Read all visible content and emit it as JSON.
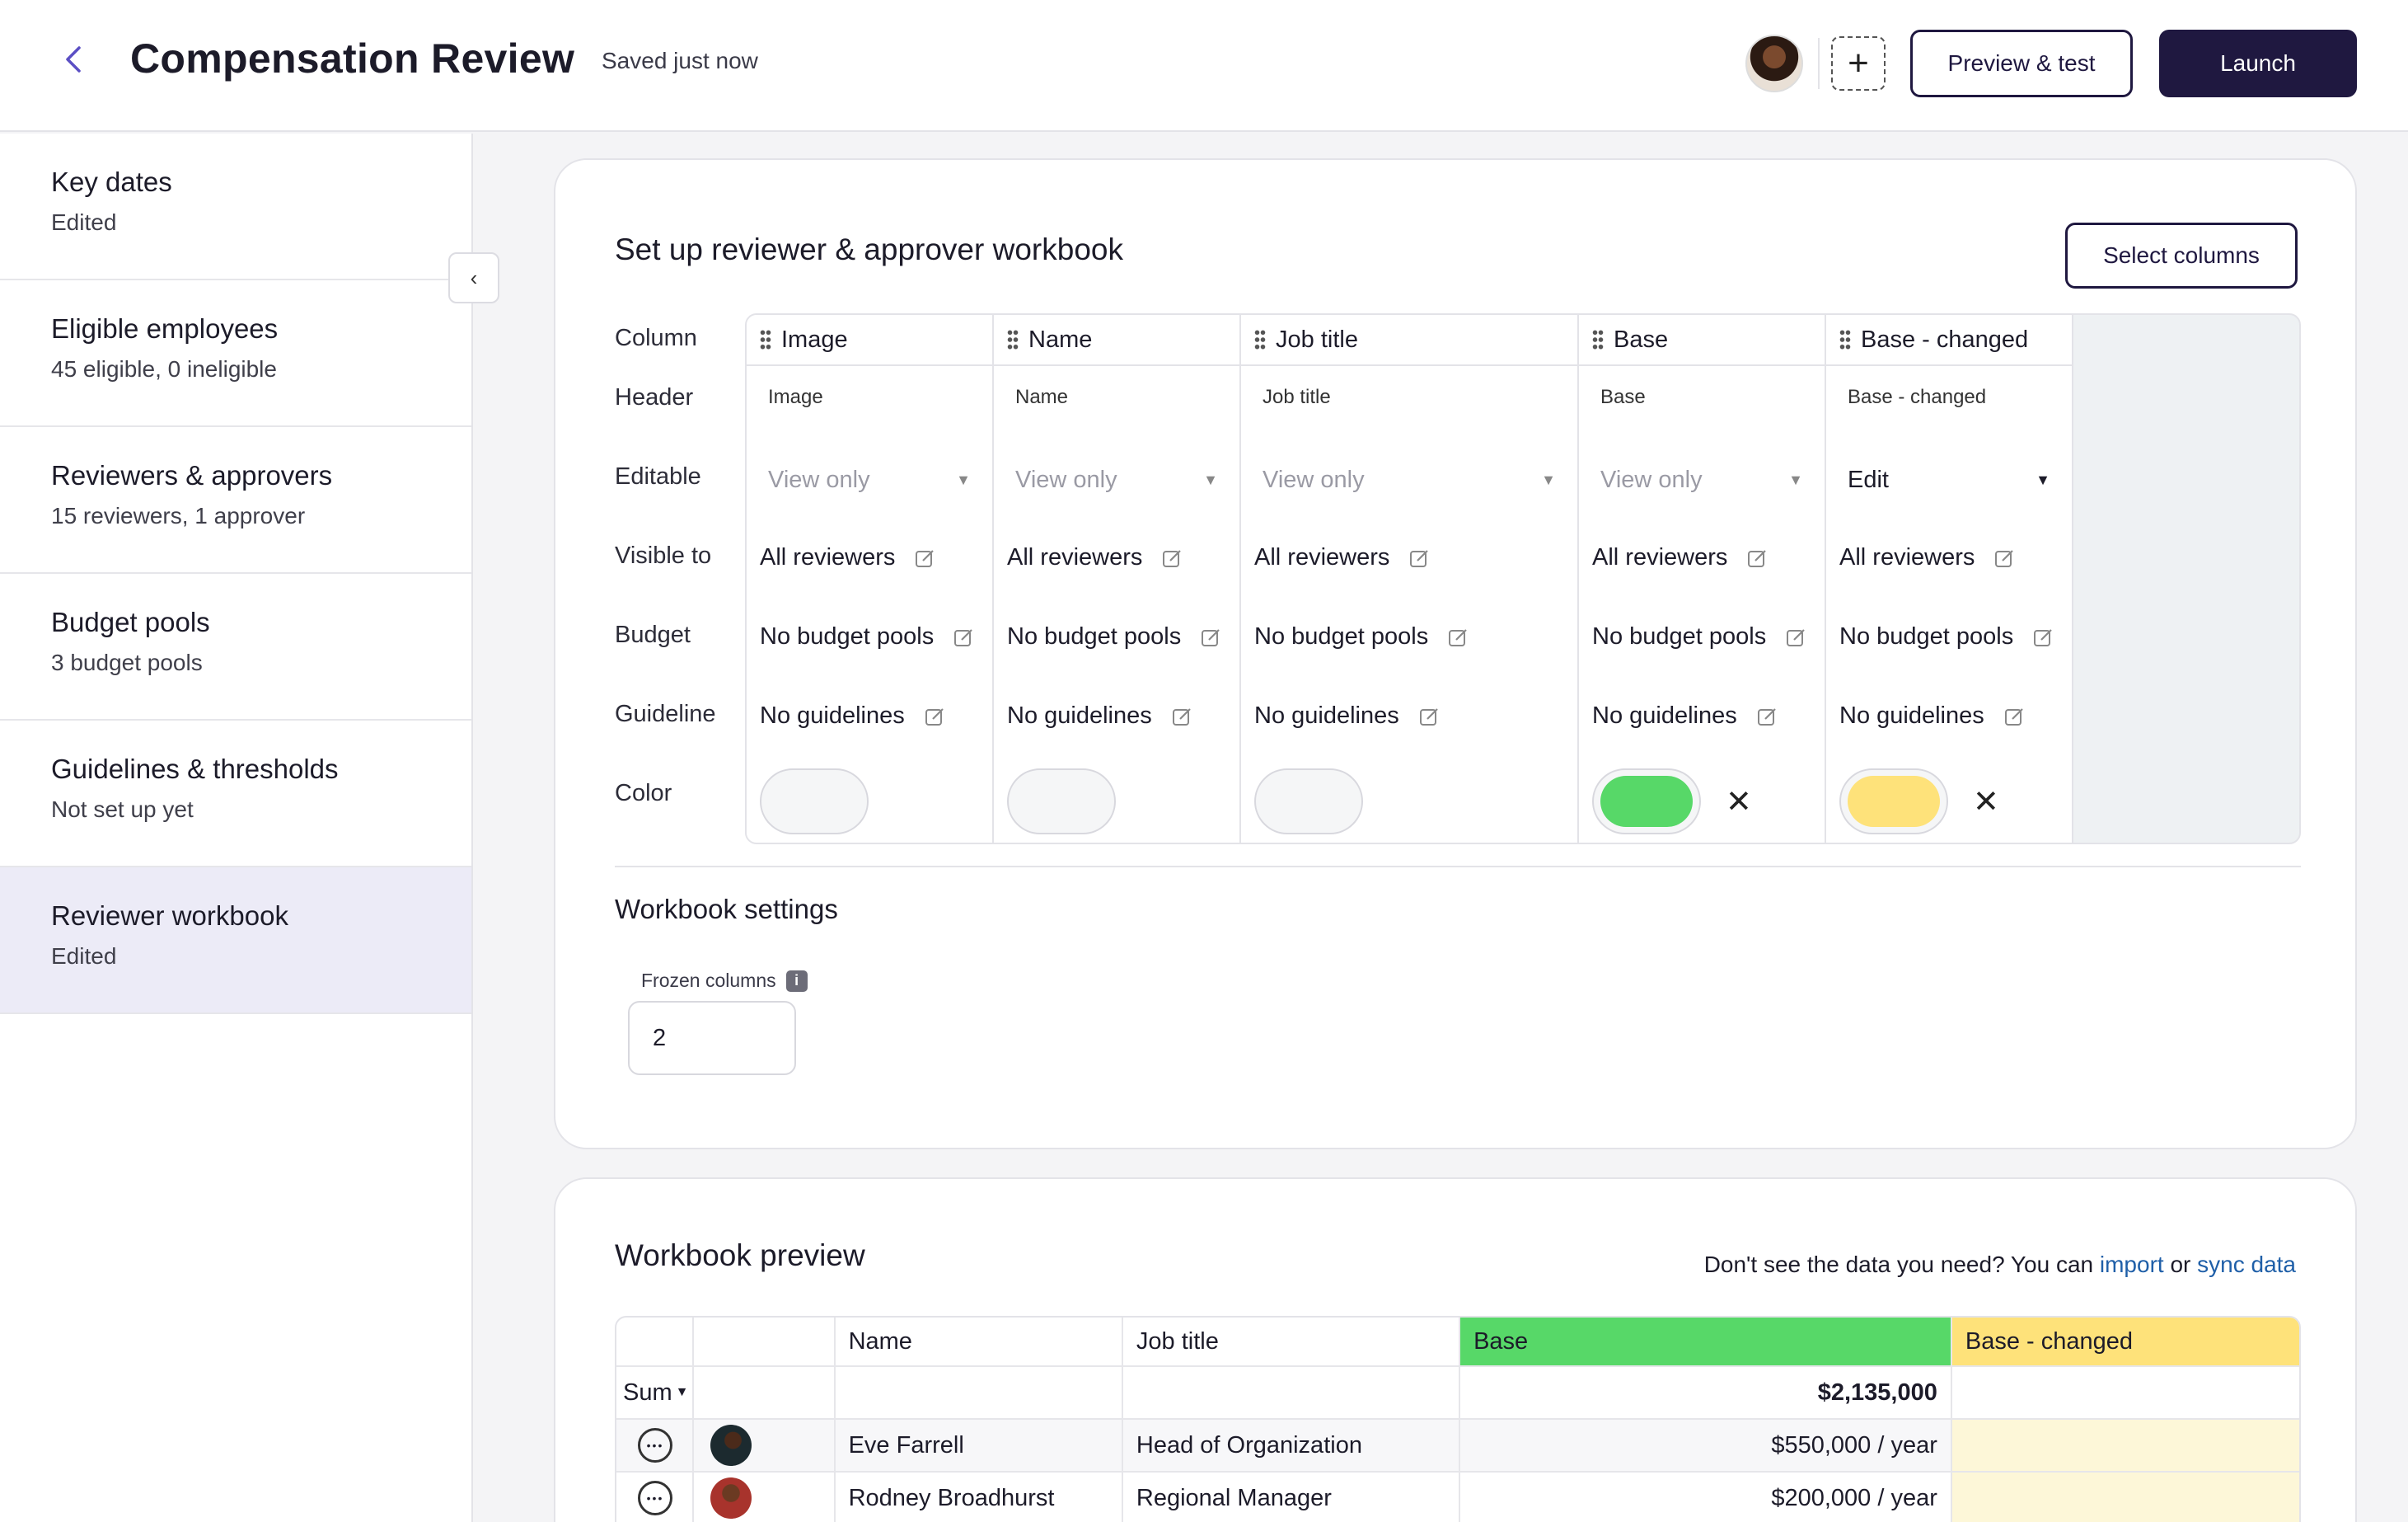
{
  "header": {
    "title": "Compensation Review",
    "saved_status": "Saved just now",
    "preview_label": "Preview & test",
    "launch_label": "Launch"
  },
  "sidebar": {
    "items": [
      {
        "label": "Key dates",
        "sub": "Edited"
      },
      {
        "label": "Eligible employees",
        "sub": "45 eligible, 0 ineligible"
      },
      {
        "label": "Reviewers & approvers",
        "sub": "15 reviewers, 1 approver"
      },
      {
        "label": "Budget pools",
        "sub": "3 budget pools"
      },
      {
        "label": "Guidelines & thresholds",
        "sub": "Not set up yet"
      },
      {
        "label": "Reviewer workbook",
        "sub": "Edited"
      }
    ]
  },
  "setup": {
    "title": "Set up reviewer & approver workbook",
    "select_columns_label": "Select columns",
    "row_labels": [
      "Column",
      "Header",
      "Editable",
      "Visible to",
      "Budget",
      "Guideline",
      "Color"
    ],
    "columns": [
      {
        "column": "Image",
        "header": "Image",
        "editable": "View only",
        "visible_to": "All reviewers",
        "budget": "No budget pools",
        "guideline": "No guidelines",
        "color": ""
      },
      {
        "column": "Name",
        "header": "Name",
        "editable": "View only",
        "visible_to": "All reviewers",
        "budget": "No budget pools",
        "guideline": "No guidelines",
        "color": ""
      },
      {
        "column": "Job title",
        "header": "Job title",
        "editable": "View only",
        "visible_to": "All reviewers",
        "budget": "No budget pools",
        "guideline": "No guidelines",
        "color": ""
      },
      {
        "column": "Base",
        "header": "Base",
        "editable": "View only",
        "visible_to": "All reviewers",
        "budget": "No budget pools",
        "guideline": "No guidelines",
        "color": "#57d868"
      },
      {
        "column": "Base - changed",
        "header": "Base - changed",
        "editable": "Edit",
        "visible_to": "All reviewers",
        "budget": "No budget pools",
        "guideline": "No guidelines",
        "color": "#fee27a"
      }
    ]
  },
  "settings": {
    "title": "Workbook settings",
    "frozen_label": "Frozen columns",
    "frozen_value": "2"
  },
  "preview": {
    "title": "Workbook preview",
    "import_text": "Don't see the data you need? You can",
    "import_link": "import",
    "or_text": "or",
    "sync_link": "sync data",
    "headers": [
      "Name",
      "Job title",
      "Base",
      "Base - changed"
    ],
    "sum_label": "Sum",
    "sum_value": "$2,135,000",
    "rows": [
      {
        "name": "Eve Farrell",
        "job": "Head of Organization",
        "base": "$550,000 / year",
        "changed": ""
      },
      {
        "name": "Rodney Broadhurst",
        "job": "Regional Manager",
        "base": "$200,000 / year",
        "changed": ""
      }
    ]
  },
  "colors": {
    "accent": "#1f1840",
    "base": "#57d868",
    "base_changed": "#fee27a",
    "link": "#1f5fa8"
  }
}
